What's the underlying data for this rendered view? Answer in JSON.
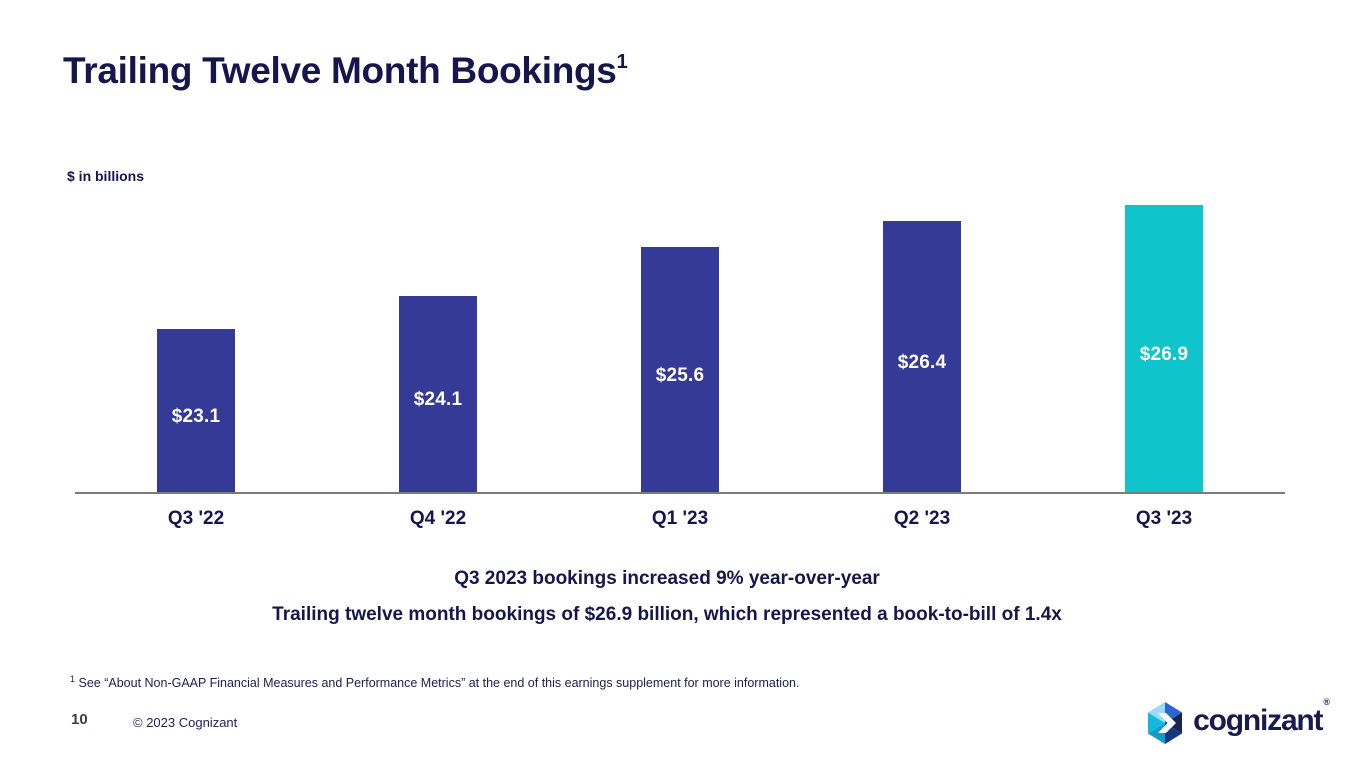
{
  "slide": {
    "title": "Trailing Twelve Month Bookings",
    "title_superscript": "1",
    "units_label": "$ in billions",
    "messages": {
      "line1": "Q3 2023 bookings increased 9% year-over-year",
      "line2": "Trailing twelve month bookings of $26.9 billion, which represented a book-to-bill of 1.4x"
    },
    "footnote": {
      "superscript": "1",
      "text": "See “About Non-GAAP Financial Measures and Performance Metrics” at the end of this earnings supplement for more information."
    },
    "footer": {
      "page_number": "10",
      "copyright": "© 2023 Cognizant",
      "logo_text": "cognizant",
      "logo_registered_mark": "®"
    }
  },
  "chart_data": {
    "type": "bar",
    "title": "Trailing Twelve Month Bookings",
    "ylabel": "$ in billions",
    "categories": [
      "Q3 '22",
      "Q4 '22",
      "Q1 '23",
      "Q2 '23",
      "Q3 '23"
    ],
    "values": [
      23.1,
      24.1,
      25.6,
      26.4,
      26.9
    ],
    "bar_labels": [
      "$23.1",
      "$24.1",
      "$25.6",
      "$26.4",
      "$26.9"
    ],
    "ylim": [
      18.1,
      27.6
    ],
    "grid": false,
    "legend": false,
    "bar_colors": [
      "#343A96",
      "#343A96",
      "#343A96",
      "#343A96",
      "#0FC4CB"
    ],
    "highlight_index": 4,
    "axis_line_color": "#7C7C7C",
    "label_color": "#FFFFFF"
  },
  "colors": {
    "navy_text": "#15164E",
    "bar_indigo": "#343A96",
    "bar_teal": "#0FC4CB",
    "background": "#FFFFFF"
  }
}
